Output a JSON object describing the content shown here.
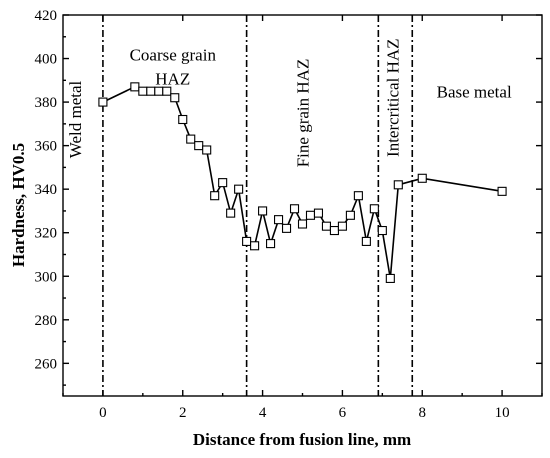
{
  "chart_data": {
    "type": "line",
    "xlabel": "Distance from fusion line, mm",
    "ylabel": "Hardness, HV0.5",
    "xlim": [
      -1,
      11
    ],
    "ylim": [
      245,
      420
    ],
    "x_ticks": [
      "0",
      "2",
      "4",
      "6",
      "8",
      "10"
    ],
    "y_ticks": [
      "260",
      "280",
      "300",
      "320",
      "340",
      "360",
      "380",
      "400",
      "420"
    ],
    "x_tick_values": [
      0,
      2,
      4,
      6,
      8,
      10
    ],
    "y_tick_values": [
      260,
      280,
      300,
      320,
      340,
      360,
      380,
      400,
      420
    ],
    "dividers": [
      0,
      3.6,
      6.9,
      7.75
    ],
    "regions": [
      {
        "lines": [
          "Weld metal"
        ],
        "orientation": "vertical",
        "x": -0.55,
        "y": 372
      },
      {
        "lines": [
          "Coarse grain",
          "HAZ"
        ],
        "orientation": "horizontal",
        "x": 1.75,
        "y": 399
      },
      {
        "lines": [
          "Fine grain HAZ"
        ],
        "orientation": "vertical",
        "x": 5.15,
        "y": 375
      },
      {
        "lines": [
          "Intercritical HAZ"
        ],
        "orientation": "vertical",
        "x": 7.4,
        "y": 382
      },
      {
        "lines": [
          "Base metal"
        ],
        "orientation": "horizontal",
        "x": 9.3,
        "y": 382
      }
    ],
    "series": [
      {
        "x": [
          0,
          0.8,
          1.0,
          1.2,
          1.4,
          1.6,
          1.8,
          2.0,
          2.2,
          2.4,
          2.6,
          2.8,
          3.0,
          3.2,
          3.4,
          3.6,
          3.8,
          4.0,
          4.2,
          4.4,
          4.6,
          4.8,
          5.0,
          5.2,
          5.4,
          5.6,
          5.8,
          6.0,
          6.2,
          6.4,
          6.6,
          6.8,
          7.0,
          7.2,
          7.4,
          8.0,
          10.0
        ],
        "y": [
          380,
          387,
          385,
          385,
          385,
          385,
          382,
          372,
          363,
          360,
          358,
          337,
          343,
          329,
          340,
          316,
          314,
          330,
          315,
          326,
          322,
          331,
          324,
          328,
          329,
          323,
          321,
          323,
          328,
          337,
          316,
          331,
          321,
          299,
          342,
          345,
          339
        ]
      }
    ]
  }
}
